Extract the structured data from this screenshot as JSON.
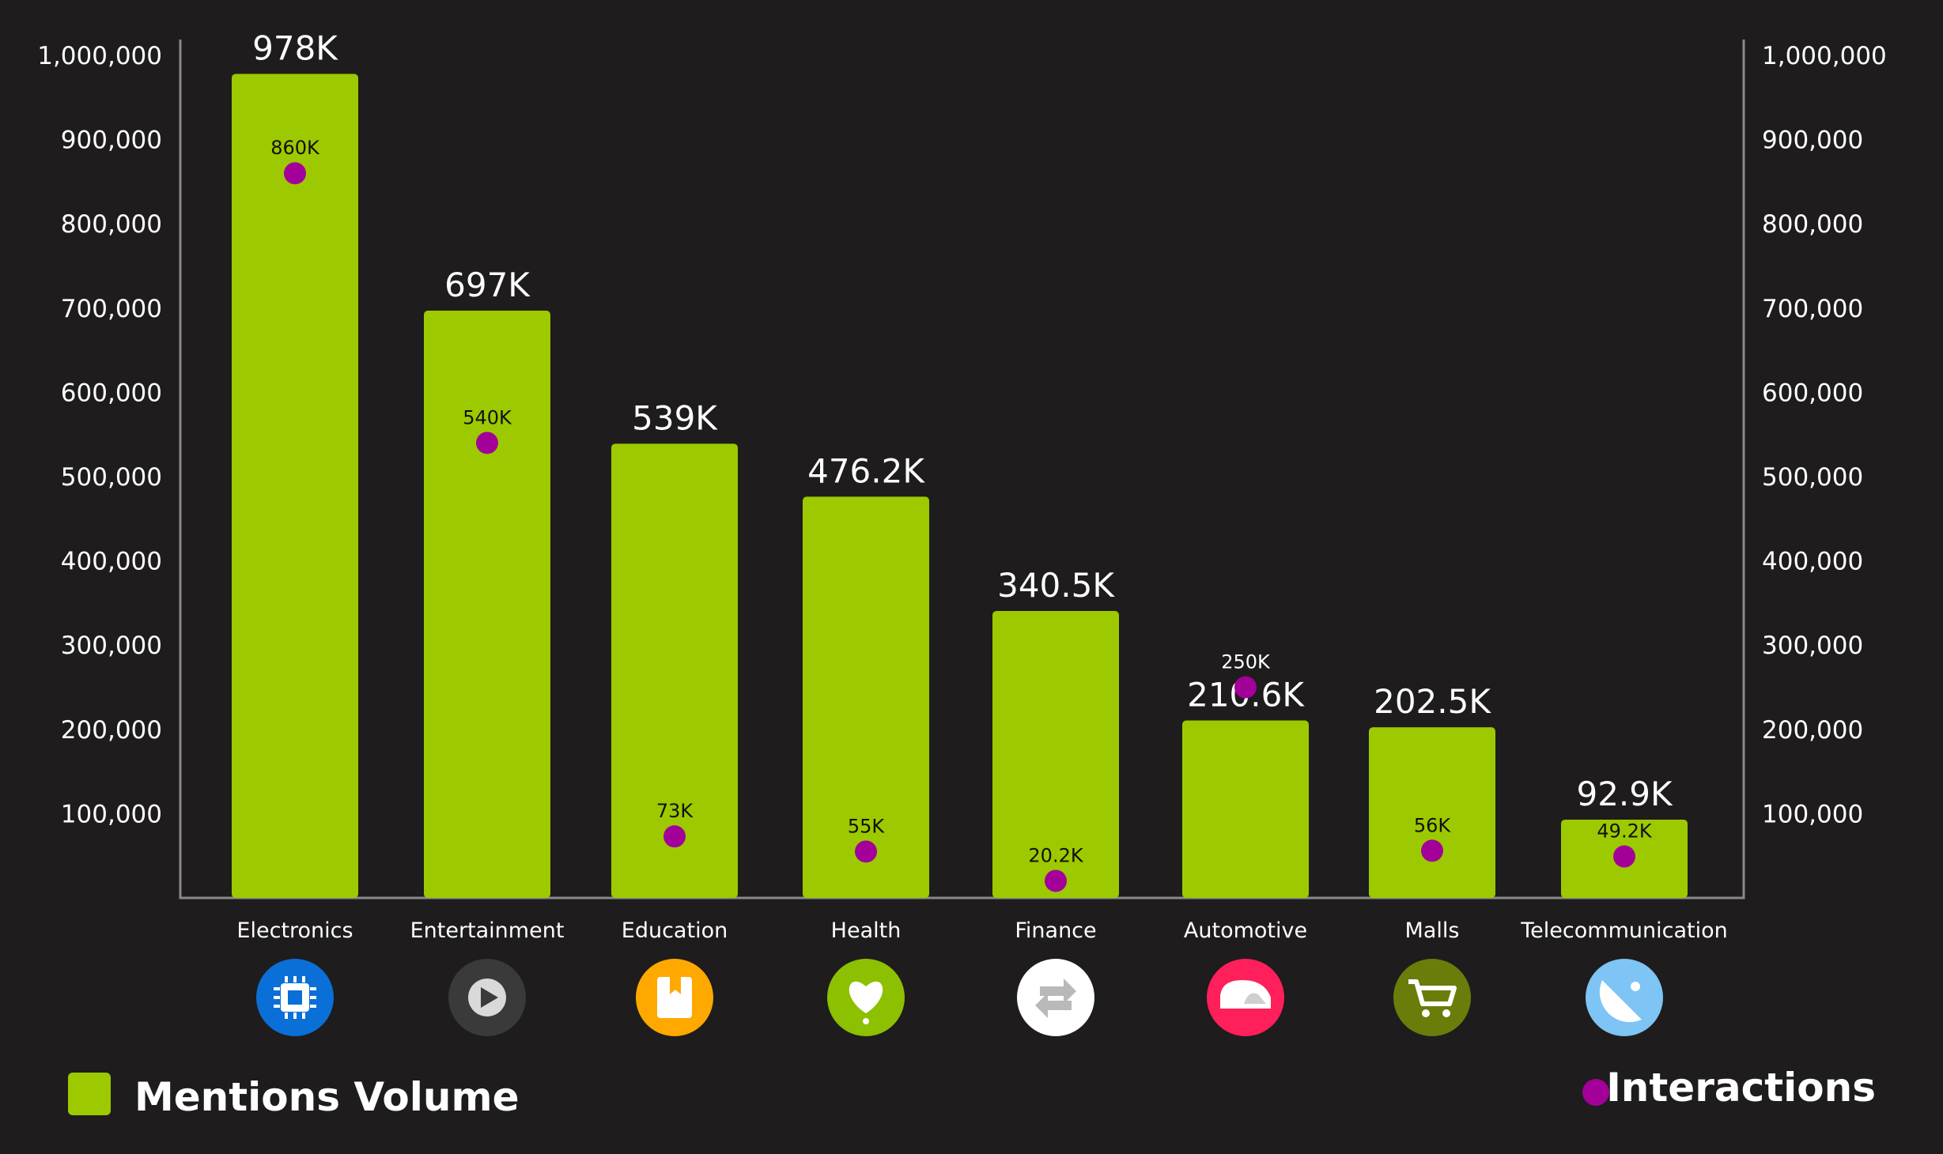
{
  "chart_data": {
    "type": "bar",
    "categories": [
      "Electronics",
      "Entertainment",
      "Education",
      "Health",
      "Finance",
      "Automotive",
      "Malls",
      "Telecommunication"
    ],
    "series": [
      {
        "name": "Mentions Volume",
        "kind": "bar",
        "color": "#9dc900",
        "values": [
          978000,
          697000,
          539000,
          476200,
          340500,
          210600,
          202500,
          92900
        ],
        "labels": [
          "978K",
          "697K",
          "539K",
          "476.2K",
          "340.5K",
          "210.6K",
          "202.5K",
          "92.9K"
        ]
      },
      {
        "name": "Interactions",
        "kind": "scatter",
        "color": "#a3009a",
        "values": [
          860000,
          540000,
          73000,
          55000,
          20200,
          250000,
          56000,
          49200
        ],
        "labels": [
          "860K",
          "540K",
          "73K",
          "55K",
          "20.2K",
          "250K",
          "56K",
          "49.2K"
        ]
      }
    ],
    "y_ticks": [
      "100,000",
      "200,000",
      "300,000",
      "400,000",
      "500,000",
      "600,000",
      "700,000",
      "800,000",
      "900,000",
      "1,000,000"
    ],
    "y_tick_values": [
      100000,
      200000,
      300000,
      400000,
      500000,
      600000,
      700000,
      800000,
      900000,
      1000000
    ],
    "ylim": [
      0,
      1000000
    ],
    "grid": false,
    "legend_placement": "bottom",
    "category_icons": [
      {
        "name": "chip-icon",
        "color": "#0a6fd6"
      },
      {
        "name": "play-icon",
        "color": "#3a3a3a"
      },
      {
        "name": "book-icon",
        "color": "#ffa800"
      },
      {
        "name": "heart-icon",
        "color": "#8cc000"
      },
      {
        "name": "exchange-icon",
        "color": "#ffffff"
      },
      {
        "name": "car-icon",
        "color": "#ff1f5a"
      },
      {
        "name": "cart-icon",
        "color": "#6a7d0a"
      },
      {
        "name": "satellite-icon",
        "color": "#7ec4f5"
      }
    ]
  },
  "legend": {
    "mentions_label": "Mentions Volume",
    "interactions_label": "Interactions"
  }
}
